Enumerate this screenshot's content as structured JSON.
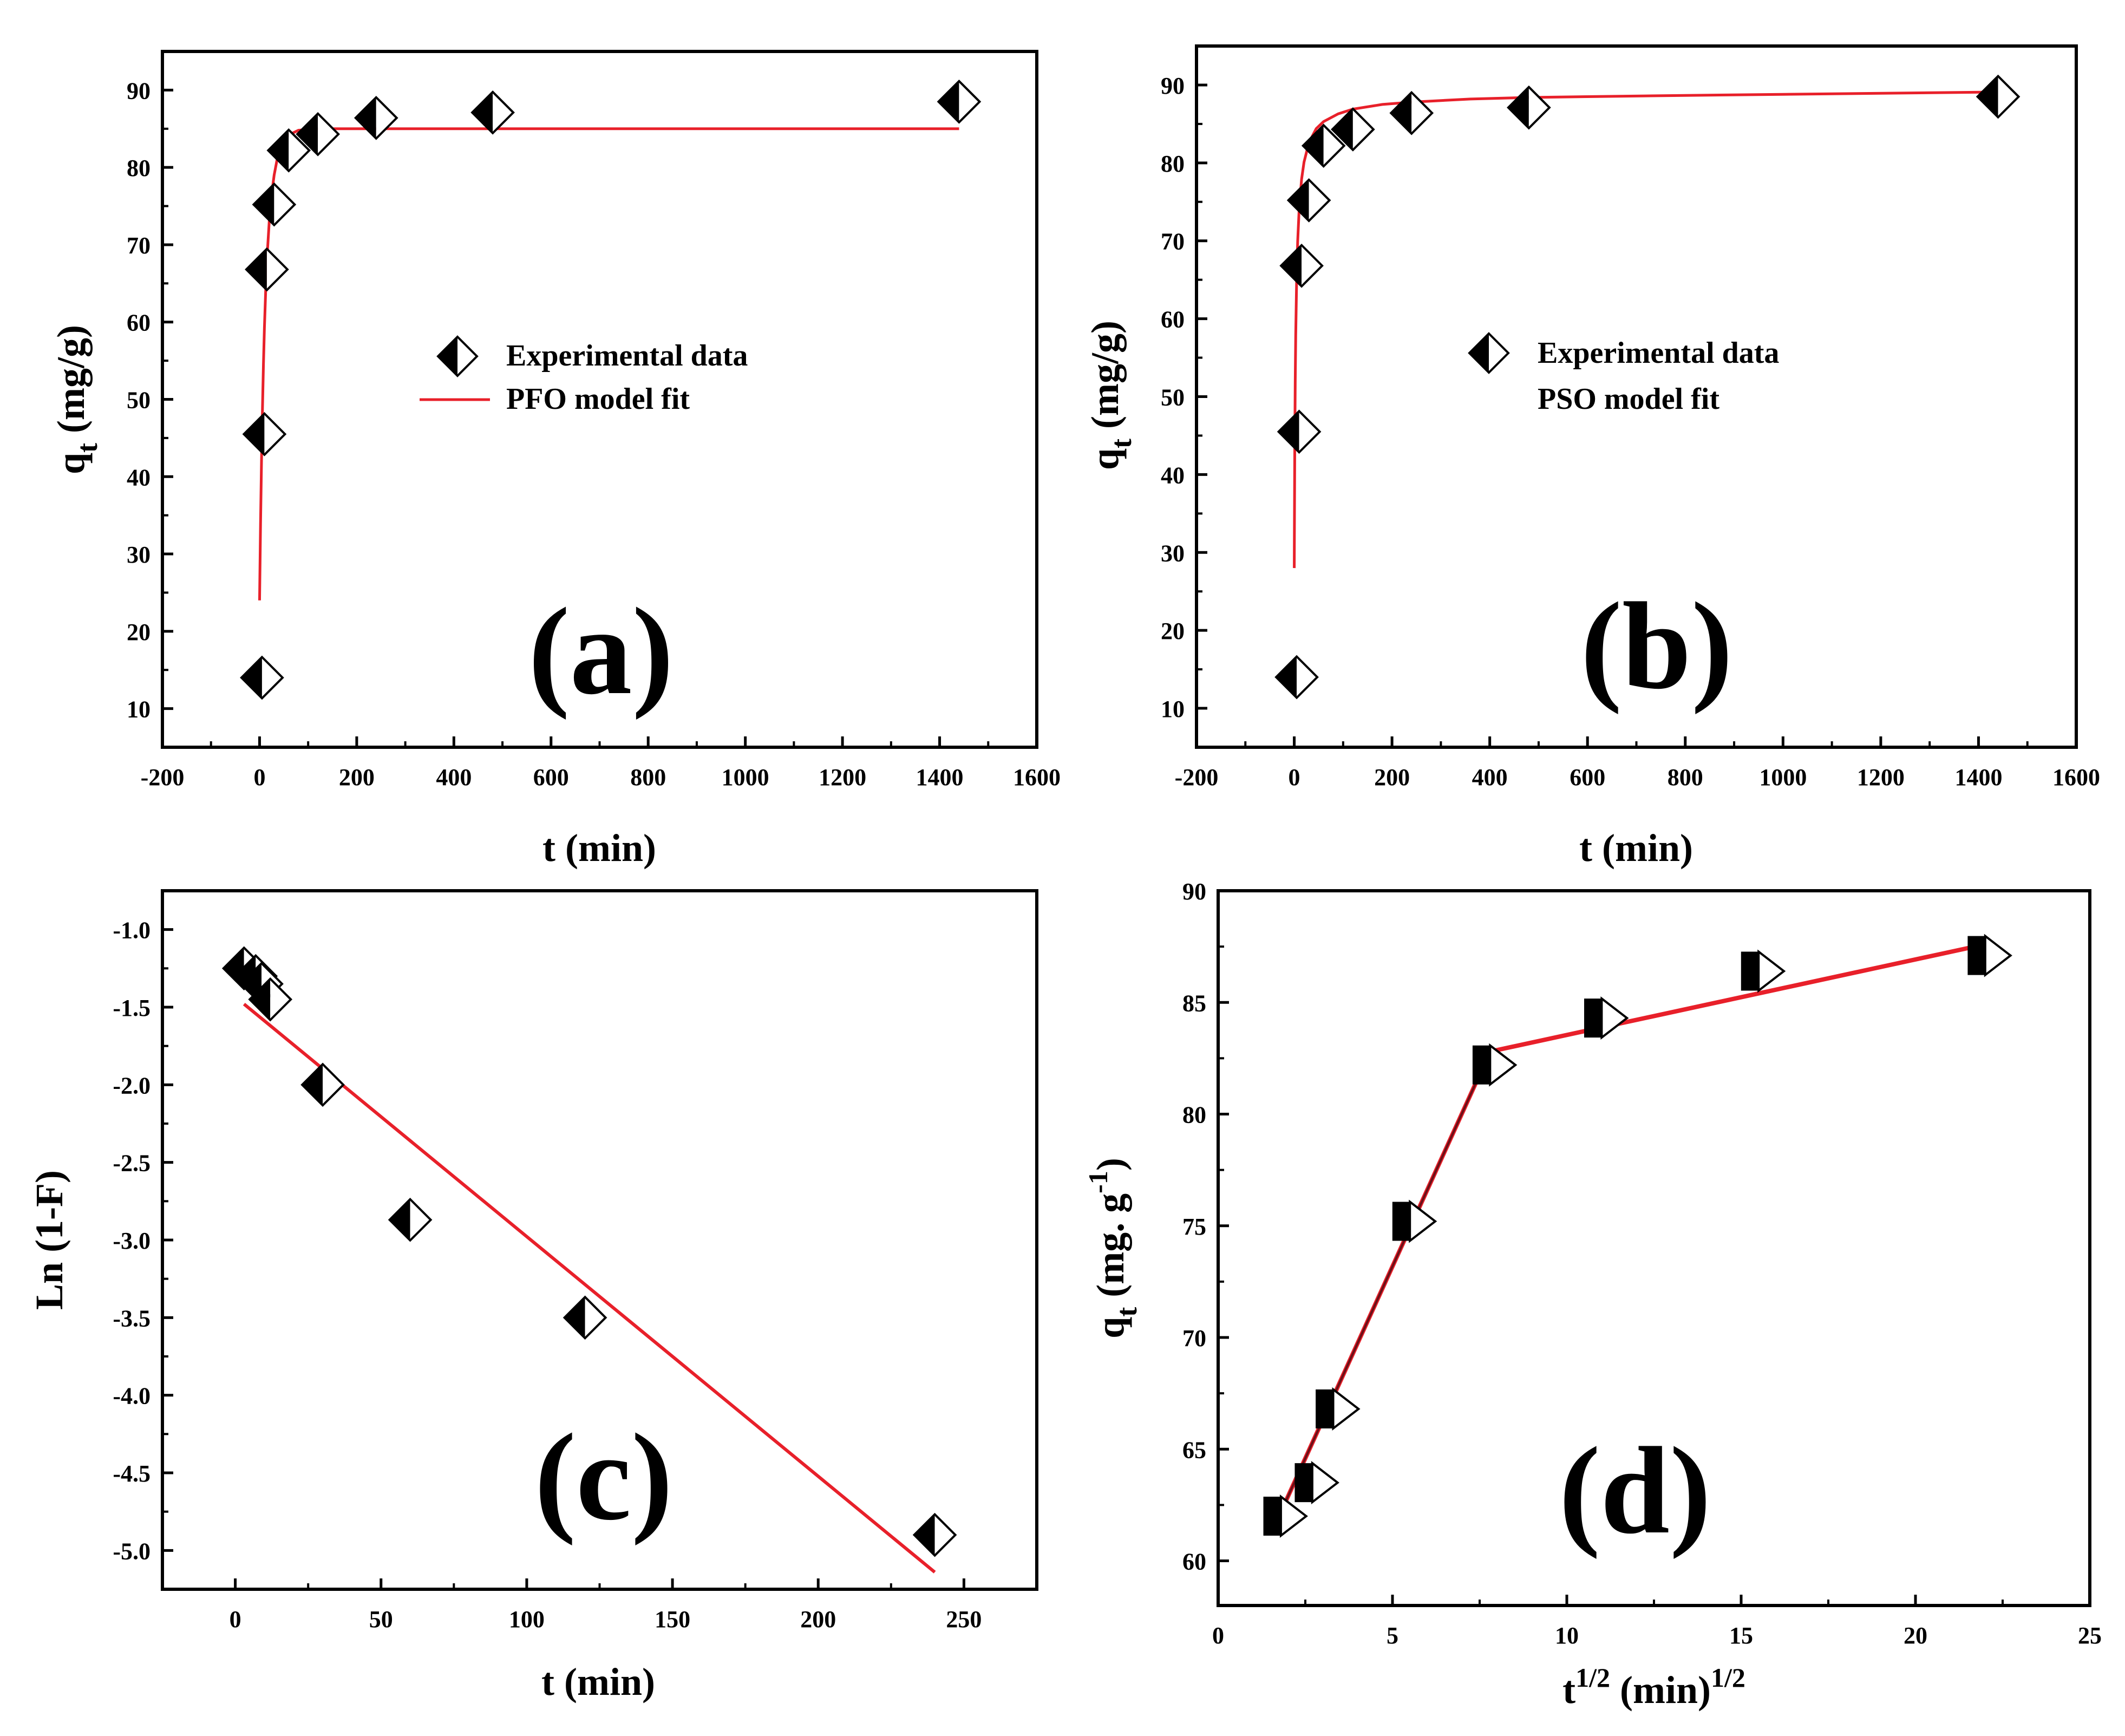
{
  "chart_data": [
    {
      "id": "a",
      "type": "scatter",
      "panel_label": "(a)",
      "xlabel": "t (min)",
      "ylabel_main": "q",
      "ylabel_sub": "t",
      "ylabel_rest": " (mg/g)",
      "xlim": [
        -200,
        1600
      ],
      "ylim": [
        5,
        95
      ],
      "xticks": [
        -200,
        0,
        200,
        400,
        600,
        800,
        1000,
        1200,
        1400,
        1600
      ],
      "yticks": [
        10,
        20,
        30,
        40,
        50,
        60,
        70,
        80,
        90
      ],
      "x": [
        5,
        10,
        15,
        30,
        60,
        120,
        240,
        480,
        1440
      ],
      "y": [
        14,
        45.5,
        66.8,
        75.2,
        82.2,
        84.3,
        86.4,
        87.1,
        88.5
      ],
      "fit_line": {
        "x": [
          0,
          2,
          4,
          6,
          8,
          10,
          13,
          16,
          20,
          25,
          30,
          36,
          42,
          50,
          60,
          80,
          120,
          200,
          400,
          800,
          1440
        ],
        "y": [
          24,
          33.9,
          42.1,
          48.9,
          54.6,
          59.3,
          64.8,
          69.0,
          73.1,
          76.6,
          79.0,
          81.0,
          82.3,
          83.4,
          84.2,
          84.8,
          85.0,
          85.0,
          85.0,
          85.0,
          85.0
        ]
      },
      "legend": [
        {
          "label": "Experimental data",
          "kind": "marker"
        },
        {
          "label": "PFO model fit",
          "kind": "line"
        }
      ],
      "colors": {
        "fit": "#e8202a"
      }
    },
    {
      "id": "b",
      "type": "scatter",
      "panel_label": "(b)",
      "xlabel": "t (min)",
      "ylabel_main": "q",
      "ylabel_sub": "t",
      "ylabel_rest": " (mg/g)",
      "xlim": [
        -200,
        1600
      ],
      "ylim": [
        5,
        95
      ],
      "xticks": [
        -200,
        0,
        200,
        400,
        600,
        800,
        1000,
        1200,
        1400,
        1600
      ],
      "yticks": [
        10,
        20,
        30,
        40,
        50,
        60,
        70,
        80,
        90
      ],
      "x": [
        5,
        10,
        15,
        30,
        60,
        120,
        240,
        480,
        1440
      ],
      "y": [
        14,
        45.5,
        66.8,
        75.2,
        82.2,
        84.3,
        86.4,
        87.1,
        88.5
      ],
      "fit_line": {
        "x": [
          0,
          1,
          2,
          3,
          5,
          7,
          10,
          15,
          20,
          30,
          45,
          60,
          90,
          120,
          180,
          240,
          360,
          480,
          720,
          1000,
          1440
        ],
        "y": [
          28,
          42.8,
          51.9,
          57.9,
          65.4,
          69.9,
          74.0,
          77.9,
          80.1,
          82.6,
          84.4,
          85.3,
          86.3,
          86.9,
          87.5,
          87.8,
          88.2,
          88.4,
          88.6,
          88.8,
          89.1
        ]
      },
      "legend": [
        {
          "label": "Experimental data",
          "kind": "marker"
        },
        {
          "label": "PSO model fit",
          "kind": "line"
        }
      ],
      "colors": {
        "fit": "#e8202a"
      }
    },
    {
      "id": "c",
      "type": "scatter",
      "panel_label": "(c)",
      "xlabel": "t (min)",
      "ylabel": "Ln (1-F)",
      "xlim": [
        -25,
        275
      ],
      "ylim": [
        -5.25,
        -0.75
      ],
      "xticks": [
        0,
        50,
        100,
        150,
        200,
        250
      ],
      "yticks": [
        -5.0,
        -4.5,
        -4.0,
        -3.5,
        -3.0,
        -2.5,
        -2.0,
        -1.5,
        -1.0
      ],
      "ytick_labels": [
        "-5.0",
        "-4.5",
        "-4.0",
        "-3.5",
        "-3.0",
        "-2.5",
        "-2.0",
        "-1.5",
        "-1.0"
      ],
      "x": [
        3,
        7,
        9,
        12,
        30,
        60,
        120,
        240
      ],
      "y": [
        -1.25,
        -1.3,
        -1.35,
        -1.45,
        -2.0,
        -2.87,
        -3.5,
        -4.9
      ],
      "fit_line": {
        "x": [
          3,
          240
        ],
        "y": [
          -1.48,
          -5.14
        ]
      },
      "colors": {
        "fit": "#e8202a"
      }
    },
    {
      "id": "d",
      "type": "scatter",
      "panel_label": "(d)",
      "xlabel_main": "t",
      "xlabel_sup": "1/2",
      "xlabel_rest": " (min)",
      "xlabel_sup2": "1/2",
      "ylabel_main": "q",
      "ylabel_sub": "t",
      "ylabel_rest": " (mg. g",
      "ylabel_sup": "-1",
      "ylabel_close": ")",
      "xlim": [
        0,
        25
      ],
      "ylim": [
        58,
        90
      ],
      "xticks": [
        0,
        5,
        10,
        15,
        20,
        25
      ],
      "yticks": [
        60,
        65,
        70,
        75,
        80,
        85,
        90
      ],
      "x": [
        1.8,
        2.7,
        3.3,
        5.5,
        7.8,
        11.0,
        15.5,
        22.0
      ],
      "y": [
        62.0,
        63.5,
        66.8,
        75.2,
        82.2,
        84.3,
        86.4,
        87.1
      ],
      "fit_segments": [
        {
          "x": [
            1.6,
            7.8
          ],
          "y": [
            61.5,
            82.8
          ],
          "color": "#e8202a"
        },
        {
          "x": [
            1.6,
            7.8
          ],
          "y": [
            61.5,
            82.8
          ],
          "color": "#6b1018"
        },
        {
          "x": [
            7.8,
            22.0
          ],
          "y": [
            82.8,
            87.6
          ],
          "color": "#e8202a"
        }
      ]
    }
  ]
}
